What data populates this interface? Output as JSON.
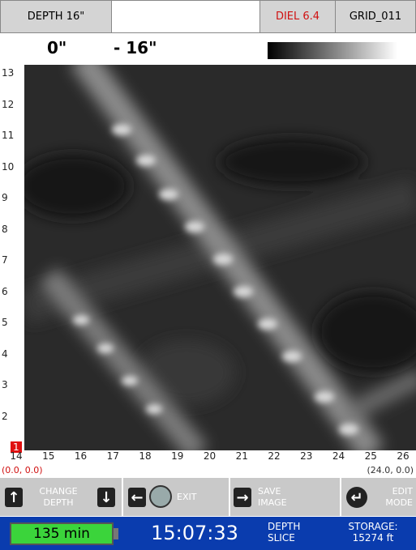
{
  "header": {
    "depth": "DEPTH 16\"",
    "diel": "DIEL 6.4",
    "grid": "GRID_011"
  },
  "range": {
    "top": "0\"",
    "bottom": "- 16\""
  },
  "y_axis": {
    "labels": [
      13,
      12,
      11,
      10,
      9,
      8,
      7,
      6,
      5,
      4,
      3,
      2,
      1
    ]
  },
  "x_axis": {
    "labels": [
      14,
      15,
      16,
      17,
      18,
      19,
      20,
      21,
      22,
      23,
      24,
      25,
      26
    ]
  },
  "coords": {
    "start": "(0.0, 0.0)",
    "end": "(24.0, 0.0)"
  },
  "buttons": {
    "change_depth": "CHANGE DEPTH",
    "exit": "EXIT",
    "save_image": "SAVE IMAGE",
    "edit_mode": "EDIT MODE"
  },
  "status": {
    "battery": "135 min",
    "time": "15:07:33",
    "mode": "DEPTH SLICE",
    "storage": "STORAGE: 15274 ft"
  }
}
